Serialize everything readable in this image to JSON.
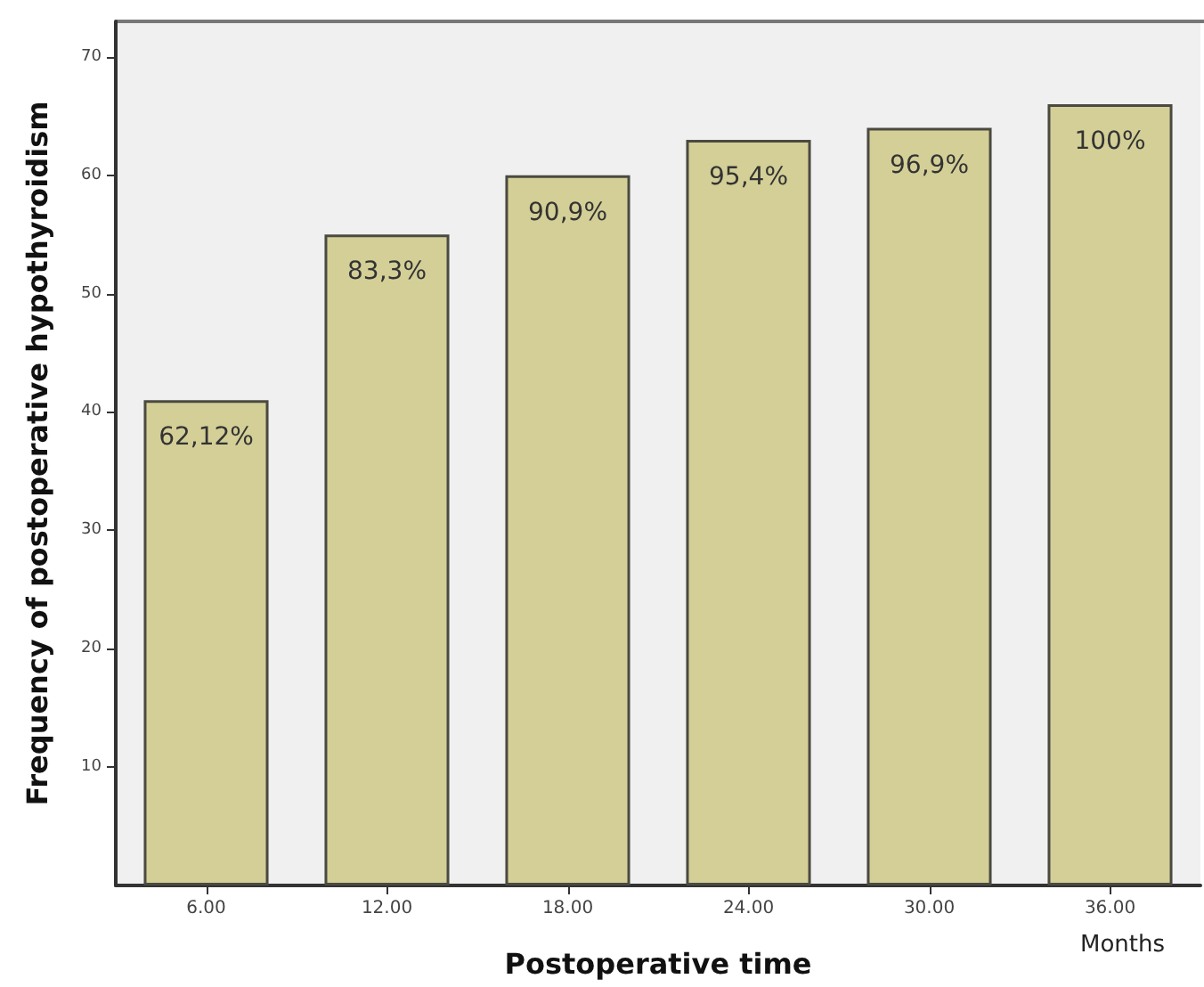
{
  "chart_data": {
    "type": "bar",
    "xlabel": "Postoperative time",
    "ylabel": "Frequency of postoperative hypothyroidism",
    "categories": [
      "6.00",
      "12.00",
      "18.00",
      "24.00",
      "30.00",
      "36.00"
    ],
    "values": [
      41,
      55,
      60,
      63,
      64,
      66
    ],
    "color": "#d3cf97",
    "ylim": [
      0,
      73
    ],
    "yticks": [
      10,
      20,
      30,
      40,
      50,
      60,
      70
    ],
    "grid": false,
    "annotations": [
      "Months",
      {
        "text": "62,12%",
        "x": "6.00",
        "y": 41
      },
      {
        "text": "83,3%",
        "x": "12.00",
        "y": 55
      },
      {
        "text": "90,9%",
        "x": "18.00",
        "y": 60
      },
      {
        "text": "95,4%",
        "x": "24.00",
        "y": 63
      },
      {
        "text": "96,9%",
        "x": "30.00",
        "y": 64
      },
      {
        "text": "100%",
        "x": "36.00",
        "y": 66
      }
    ]
  }
}
